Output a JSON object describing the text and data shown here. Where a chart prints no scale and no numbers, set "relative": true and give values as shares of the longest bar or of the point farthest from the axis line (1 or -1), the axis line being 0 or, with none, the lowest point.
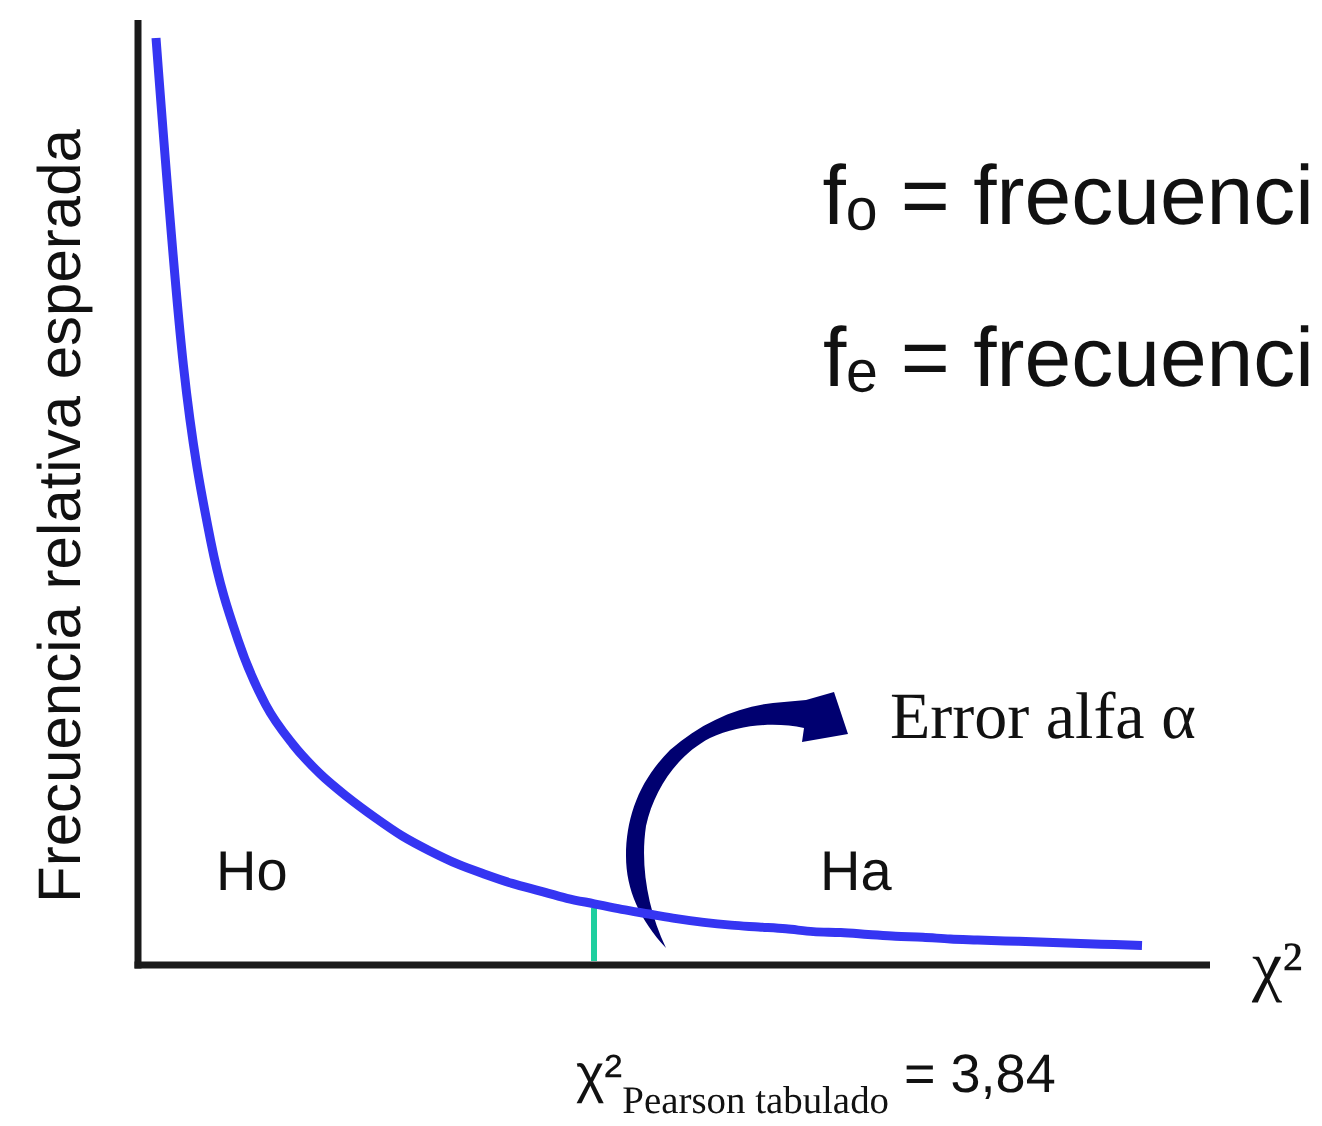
{
  "chart_data": {
    "type": "line",
    "relative": true,
    "xlabel": "χ²",
    "ylabel": "Frecuencia relativa esperada",
    "categories": [
      null,
      null,
      null,
      null,
      null,
      null,
      null,
      null,
      null,
      null,
      null,
      null,
      null,
      null,
      null,
      null,
      null,
      null,
      null,
      null,
      null,
      null,
      null,
      null,
      null,
      null,
      null,
      null,
      null,
      null,
      null,
      null,
      null,
      null,
      null,
      null,
      null
    ],
    "series": [
      {
        "color": "#3535f2",
        "values": [
          1.0,
          0.647,
          0.457,
          0.35,
          0.281,
          0.238,
          0.206,
          0.181,
          0.159,
          0.139,
          0.123,
          0.109,
          0.098,
          0.088,
          0.08,
          0.072,
          0.066,
          0.06,
          0.055,
          0.05,
          0.046,
          0.043,
          0.041,
          0.039,
          0.036,
          0.035,
          0.033,
          0.031,
          0.03,
          0.028,
          0.027,
          0.026,
          0.025,
          0.024,
          0.023,
          0.022,
          0.021
        ]
      }
    ],
    "annotations": [
      "fₒ = frecuenci",
      "fₑ = frecuenci",
      "Error alfa α",
      "Ho",
      "Ha",
      "χ²$_{Pearson tabulado}$ = 3,84"
    ]
  }
}
